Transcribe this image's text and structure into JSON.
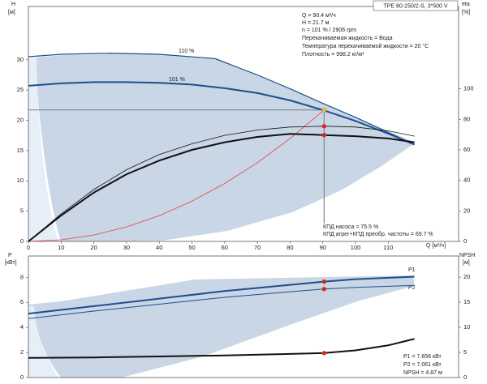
{
  "chart_data": [
    {
      "type": "line",
      "model": "TPE 80-250/2-S, 3*500 V",
      "info": [
        "Q = 90.4 м³/ч",
        "H = 21.7 м",
        "n = 101 % / 2906 rpm",
        "Перекачиваемая жидкость = Вода",
        "Температура перекачиваемой жидкости = 20 °C",
        "Плотность = 998.2 кг/м³"
      ],
      "annotations": [
        "КПД насоса = 75.5 %",
        "КПД агрег+КПД преобр. частоты = 69.7 %"
      ],
      "y_label": "H",
      "y_unit": "[м]",
      "y2_label": "eta",
      "y2_unit": "[%]",
      "x_label": "Q [м³/ч]",
      "xlim": [
        0,
        131.5
      ],
      "xticks": [
        0,
        10,
        20,
        30,
        40,
        50,
        60,
        70,
        80,
        90,
        100,
        110
      ],
      "ylim": [
        0,
        38.8
      ],
      "yticks": [
        0,
        5,
        10,
        15,
        20,
        25,
        30
      ],
      "y2lim": [
        0,
        154
      ],
      "y2ticks": [
        0,
        20,
        40,
        60,
        80,
        100
      ],
      "duty_point": {
        "x": 90.4,
        "y": 21.7
      },
      "series": [
        {
          "name": "110 %",
          "color": "#1f4e8c",
          "width": 1.2,
          "x": [
            0,
            10,
            25,
            40,
            57,
            70,
            80,
            90,
            100,
            110,
            118
          ],
          "values": [
            30.5,
            30.9,
            31.1,
            30.9,
            30.2,
            27.5,
            25.2,
            22.8,
            20.5,
            18,
            16
          ]
        },
        {
          "name": "101 %",
          "color": "#1f4e8c",
          "width": 2,
          "x": [
            0,
            10,
            20,
            30,
            40,
            50,
            60,
            70,
            80,
            90,
            100,
            110,
            118
          ],
          "values": [
            25.7,
            26.1,
            26.3,
            26.3,
            26.2,
            25.9,
            25.3,
            24.5,
            23.3,
            21.7,
            19.9,
            17.8,
            16
          ]
        },
        {
          "color": "#e84040",
          "width": 0.8,
          "x": [
            0,
            10,
            20,
            30,
            40,
            50,
            60,
            70,
            80,
            90.4
          ],
          "values": [
            0,
            0.27,
            1.06,
            2.39,
            4.25,
            6.64,
            9.56,
            13,
            17,
            21.7
          ]
        },
        {
          "color": "#111111",
          "width": 0.8,
          "axis": "y2",
          "x": [
            0,
            10,
            20,
            30,
            40,
            50,
            60,
            70,
            80,
            90.4,
            100,
            110,
            118
          ],
          "values": [
            0,
            18,
            34,
            47,
            57,
            64,
            69.5,
            73,
            75,
            75.5,
            75,
            72.5,
            69
          ]
        },
        {
          "color": "#111111",
          "width": 2,
          "axis": "y2",
          "x": [
            0,
            10,
            20,
            30,
            40,
            50,
            60,
            70,
            80,
            90.4,
            100,
            110,
            118
          ],
          "values": [
            0,
            17,
            32,
            44,
            53,
            60,
            65,
            68.5,
            70.5,
            69.7,
            69,
            67.5,
            65
          ]
        }
      ],
      "markers": [
        {
          "x": 90.4,
          "y": 21.7,
          "color": "#f0c040"
        },
        {
          "x": 90.4,
          "y": 75.5,
          "axis": "y2",
          "color": "#e02020"
        },
        {
          "x": 90.4,
          "y": 69.7,
          "axis": "y2",
          "color": "#e02020"
        }
      ]
    },
    {
      "type": "line",
      "y_label": "P",
      "y_unit": "[кВт]",
      "y2_label": "NPSH",
      "y2_unit": "[м]",
      "annotations": [
        "P1 = 7.656 кВт",
        "P2 = 7.061 кВт",
        "NPSH = 4.87 м"
      ],
      "xlim": [
        0,
        131.5
      ],
      "ylim": [
        0,
        9.7
      ],
      "yticks": [
        0,
        2,
        4,
        6,
        8
      ],
      "y2lim": [
        0,
        24.2
      ],
      "y2ticks": [
        0,
        5,
        10,
        15,
        20
      ],
      "series": [
        {
          "name": "P1",
          "color": "#1f4e8c",
          "width": 2,
          "x": [
            0,
            20,
            40,
            60,
            80,
            90.4,
            100,
            118
          ],
          "values": [
            5.1,
            5.7,
            6.3,
            6.9,
            7.4,
            7.656,
            7.85,
            8.05
          ]
        },
        {
          "name": "P2",
          "color": "#1f4e8c",
          "width": 1,
          "x": [
            0,
            20,
            40,
            60,
            80,
            90.4,
            100,
            118
          ],
          "values": [
            4.7,
            5.3,
            5.85,
            6.4,
            6.85,
            7.061,
            7.2,
            7.35
          ]
        },
        {
          "color": "#111111",
          "width": 2,
          "axis": "y2",
          "x": [
            0,
            20,
            40,
            60,
            80,
            90.4,
            100,
            110,
            118
          ],
          "values": [
            3.9,
            4,
            4.2,
            4.4,
            4.7,
            4.87,
            5.4,
            6.4,
            7.7
          ]
        }
      ],
      "markers": [
        {
          "x": 90.4,
          "y": 7.656,
          "color": "#e02020"
        },
        {
          "x": 90.4,
          "y": 7.061,
          "color": "#e02020"
        },
        {
          "x": 90.4,
          "y": 4.87,
          "axis": "y2",
          "color": "#e02020"
        }
      ]
    }
  ]
}
